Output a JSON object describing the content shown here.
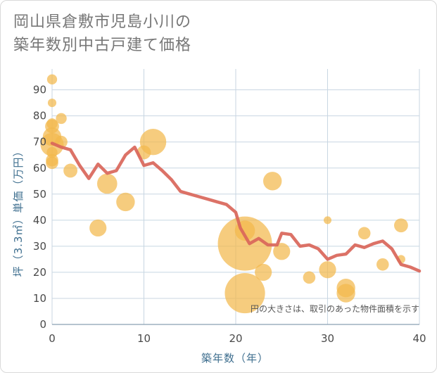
{
  "chart_data": {
    "type": "scatter",
    "title_lines": [
      "岡山県倉敷市児島小川の",
      "築年数別中古戸建て価格"
    ],
    "xlabel": "築年数（年）",
    "ylabel": "坪（3.3㎡）単価（万円）",
    "xlim": [
      0,
      40
    ],
    "ylim": [
      0,
      98
    ],
    "x_ticks": [
      0,
      10,
      20,
      30,
      40
    ],
    "y_ticks": [
      0,
      10,
      20,
      30,
      40,
      50,
      60,
      70,
      80,
      90
    ],
    "grid": true,
    "annotation": "円の大きさは、取引のあった物件面積を示す",
    "colors": {
      "bubble": "#f3b84c",
      "line": "#d9665a",
      "grid": "#c8d6e2",
      "axis_text": "#3f6f8f"
    },
    "bubbles": [
      {
        "x": 0,
        "y": 94,
        "s": 1.3
      },
      {
        "x": 0,
        "y": 85,
        "s": 1.1
      },
      {
        "x": 0,
        "y": 77,
        "s": 1.4
      },
      {
        "x": 0,
        "y": 76,
        "s": 1.8
      },
      {
        "x": 0,
        "y": 72,
        "s": 2.4
      },
      {
        "x": 0,
        "y": 69,
        "s": 3.0
      },
      {
        "x": 0,
        "y": 66,
        "s": 1.4
      },
      {
        "x": 0,
        "y": 63,
        "s": 1.6
      },
      {
        "x": 0,
        "y": 62,
        "s": 1.6
      },
      {
        "x": 1,
        "y": 79,
        "s": 1.4
      },
      {
        "x": 1,
        "y": 70,
        "s": 1.6
      },
      {
        "x": 2,
        "y": 59,
        "s": 1.8
      },
      {
        "x": 5,
        "y": 37,
        "s": 2.2
      },
      {
        "x": 6,
        "y": 54,
        "s": 2.6
      },
      {
        "x": 8,
        "y": 47,
        "s": 2.4
      },
      {
        "x": 10,
        "y": 66,
        "s": 1.8
      },
      {
        "x": 11,
        "y": 70,
        "s": 3.4
      },
      {
        "x": 21,
        "y": 31,
        "s": 7.0
      },
      {
        "x": 21,
        "y": 36,
        "s": 2.6
      },
      {
        "x": 21,
        "y": 12,
        "s": 5.2
      },
      {
        "x": 23,
        "y": 20,
        "s": 2.2
      },
      {
        "x": 24,
        "y": 55,
        "s": 2.4
      },
      {
        "x": 25,
        "y": 28,
        "s": 2.2
      },
      {
        "x": 28,
        "y": 18,
        "s": 1.6
      },
      {
        "x": 30,
        "y": 40,
        "s": 1.0
      },
      {
        "x": 30,
        "y": 21,
        "s": 2.2
      },
      {
        "x": 32,
        "y": 14,
        "s": 2.4
      },
      {
        "x": 32,
        "y": 12,
        "s": 2.4
      },
      {
        "x": 34,
        "y": 35,
        "s": 1.6
      },
      {
        "x": 36,
        "y": 23,
        "s": 1.6
      },
      {
        "x": 38,
        "y": 38,
        "s": 1.8
      },
      {
        "x": 38,
        "y": 25,
        "s": 1.1
      }
    ],
    "trend_line": [
      {
        "x": 0,
        "y": 69.5
      },
      {
        "x": 1,
        "y": 68
      },
      {
        "x": 2,
        "y": 67
      },
      {
        "x": 3,
        "y": 61
      },
      {
        "x": 4,
        "y": 56
      },
      {
        "x": 5,
        "y": 61.5
      },
      {
        "x": 6,
        "y": 58
      },
      {
        "x": 7,
        "y": 59
      },
      {
        "x": 8,
        "y": 65
      },
      {
        "x": 9,
        "y": 68
      },
      {
        "x": 10,
        "y": 61
      },
      {
        "x": 11,
        "y": 62
      },
      {
        "x": 12,
        "y": 59
      },
      {
        "x": 13,
        "y": 55.5
      },
      {
        "x": 14,
        "y": 51
      },
      {
        "x": 15,
        "y": 50
      },
      {
        "x": 16,
        "y": 49
      },
      {
        "x": 17,
        "y": 48
      },
      {
        "x": 18,
        "y": 47
      },
      {
        "x": 19,
        "y": 46
      },
      {
        "x": 20,
        "y": 43
      },
      {
        "x": 20.5,
        "y": 37
      },
      {
        "x": 21,
        "y": 34
      },
      {
        "x": 21.5,
        "y": 31
      },
      {
        "x": 22.5,
        "y": 33
      },
      {
        "x": 23.5,
        "y": 30.5
      },
      {
        "x": 24.5,
        "y": 30.5
      },
      {
        "x": 25,
        "y": 35
      },
      {
        "x": 26,
        "y": 34.5
      },
      {
        "x": 27,
        "y": 30
      },
      {
        "x": 28,
        "y": 30.5
      },
      {
        "x": 29,
        "y": 29
      },
      {
        "x": 30,
        "y": 25
      },
      {
        "x": 31,
        "y": 26.5
      },
      {
        "x": 32,
        "y": 27
      },
      {
        "x": 33,
        "y": 30.5
      },
      {
        "x": 34,
        "y": 29.5
      },
      {
        "x": 35,
        "y": 31
      },
      {
        "x": 36,
        "y": 32
      },
      {
        "x": 37,
        "y": 29
      },
      {
        "x": 38,
        "y": 23
      },
      {
        "x": 39,
        "y": 22
      },
      {
        "x": 40,
        "y": 20.5
      }
    ]
  }
}
